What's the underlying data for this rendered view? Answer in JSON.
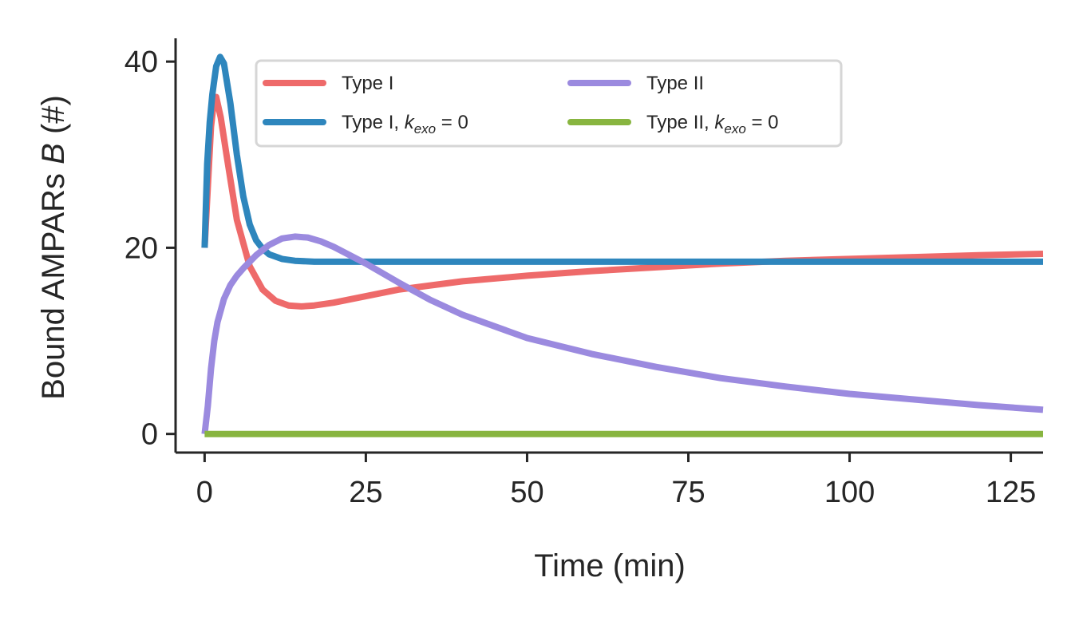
{
  "chart_data": {
    "type": "line",
    "title": "",
    "xlabel": "Time (min)",
    "ylabel_parts": [
      "Bound AMPARs ",
      "B",
      " (#)"
    ],
    "xlim": [
      -4.5,
      130
    ],
    "ylim": [
      -2,
      42.5
    ],
    "xticks": [
      0,
      25,
      50,
      75,
      100,
      125
    ],
    "yticks": [
      0,
      20,
      40
    ],
    "grid": false,
    "legend": {
      "placement": "upper-center",
      "columns": 2,
      "k_symbol": "k",
      "k_subscript": "exo",
      "k_equals": " = 0"
    },
    "series": [
      {
        "name": "Type I",
        "color": "#ee6a6a",
        "has_k_suffix": false,
        "x": [
          0,
          1.0,
          1.4,
          1.8,
          2.5,
          3.5,
          5,
          7,
          9,
          11,
          13,
          15,
          17,
          20,
          25,
          30,
          40,
          50,
          60,
          70,
          80,
          90,
          100,
          110,
          120,
          130
        ],
        "y": [
          20,
          33,
          35.5,
          36.2,
          34,
          29.5,
          23,
          18,
          15.5,
          14.3,
          13.8,
          13.7,
          13.8,
          14.1,
          14.8,
          15.5,
          16.4,
          17.0,
          17.5,
          17.9,
          18.3,
          18.6,
          18.8,
          19.0,
          19.2,
          19.35
        ]
      },
      {
        "name": "Type I",
        "color": "#2e86bd",
        "has_k_suffix": true,
        "x": [
          0,
          0.4,
          0.8,
          1.2,
          1.8,
          2.4,
          3.0,
          4,
          5,
          6,
          7,
          8,
          9,
          10,
          12,
          14,
          17,
          20,
          30,
          50,
          80,
          100,
          130
        ],
        "y": [
          20,
          29,
          33.5,
          36.5,
          39.5,
          40.5,
          39.8,
          35.5,
          30,
          25.5,
          22.5,
          20.8,
          19.9,
          19.3,
          18.8,
          18.6,
          18.5,
          18.5,
          18.5,
          18.5,
          18.5,
          18.5,
          18.5
        ]
      },
      {
        "name": "Type II",
        "color": "#9b8adf",
        "has_k_suffix": false,
        "x": [
          0,
          0.5,
          1.0,
          1.5,
          2,
          3,
          4,
          5,
          6,
          8,
          10,
          12,
          14,
          16,
          18,
          20,
          25,
          30,
          35,
          40,
          50,
          60,
          70,
          80,
          90,
          100,
          110,
          120,
          130
        ],
        "y": [
          0,
          3.0,
          7.0,
          10.0,
          12.0,
          14.5,
          16.0,
          17.0,
          17.8,
          19.2,
          20.3,
          21.0,
          21.2,
          21.1,
          20.7,
          20.1,
          18.3,
          16.3,
          14.4,
          12.8,
          10.3,
          8.6,
          7.2,
          6.0,
          5.1,
          4.3,
          3.7,
          3.1,
          2.6
        ]
      },
      {
        "name": "Type II",
        "color": "#88b540",
        "has_k_suffix": true,
        "x": [
          0,
          130
        ],
        "y": [
          0,
          0
        ]
      }
    ]
  }
}
